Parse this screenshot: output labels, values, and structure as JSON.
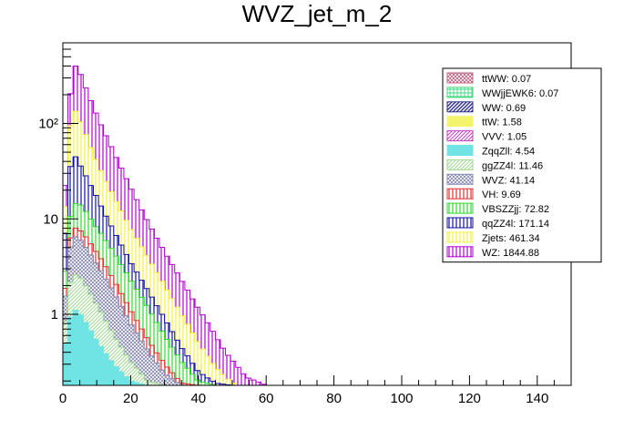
{
  "chart_data": {
    "type": "bar",
    "title": "WVZ_jet_m_2",
    "xlabel": "",
    "ylabel": "",
    "xlim": [
      0,
      150
    ],
    "ylim": [
      0.18,
      700
    ],
    "y_scale": "log",
    "stacked": true,
    "bin_width": 1.5,
    "x_ticks": [
      0,
      20,
      40,
      60,
      80,
      100,
      120,
      140
    ],
    "y_tick_labels": [
      {
        "value": 1,
        "label": "1"
      },
      {
        "value": 10,
        "label": "10"
      },
      {
        "value": 100,
        "label": "10²"
      }
    ],
    "legend_position": "top-right",
    "series": [
      {
        "name": "ttWW: 0.07",
        "color": "#c06080",
        "hatch": "crosshatch",
        "total": 0.07
      },
      {
        "name": "WWjjEWK6: 0.07",
        "color": "#40d880",
        "hatch": "grid",
        "total": 0.07
      },
      {
        "name": "WW: 0.69",
        "color": "#303090",
        "hatch": "dense-diagonal",
        "total": 0.69
      },
      {
        "name": "ttW: 1.58",
        "color": "#f4f46c",
        "hatch": "solid",
        "total": 1.58
      },
      {
        "name": "VVV: 1.05",
        "color": "#c040c0",
        "hatch": "diagonal",
        "total": 1.05
      },
      {
        "name": "ZqqZll: 4.54",
        "color": "#70e4e4",
        "hatch": "solid",
        "total": 4.54
      },
      {
        "name": "ggZZ4l: 11.46",
        "color": "#a0d890",
        "hatch": "diagonal",
        "total": 11.46
      },
      {
        "name": "WVZ: 41.14",
        "color": "#8888b0",
        "hatch": "crosshatch",
        "total": 41.14
      },
      {
        "name": "VH: 9.69",
        "color": "#e03030",
        "hatch": "vertical",
        "total": 9.69
      },
      {
        "name": "VBSZZjj: 72.82",
        "color": "#30d830",
        "hatch": "vertical",
        "total": 72.82
      },
      {
        "name": "qqZZ4l: 171.14",
        "color": "#1010a0",
        "hatch": "vertical",
        "total": 171.14
      },
      {
        "name": "Zjets: 461.34",
        "color": "#f0f040",
        "hatch": "vertical",
        "total": 461.34
      },
      {
        "name": "WZ: 1844.88",
        "color": "#b000d0",
        "hatch": "vertical",
        "total": 1844.88
      }
    ],
    "stack_envelope": {
      "x": [
        0,
        1.5,
        3,
        4.5,
        6,
        7.5,
        9,
        10.5,
        12,
        15,
        18,
        21,
        24,
        27,
        30,
        33,
        36,
        39,
        42,
        45,
        48,
        51,
        54,
        57,
        60
      ],
      "y": [
        5,
        100,
        420,
        380,
        280,
        200,
        150,
        110,
        85,
        50,
        30,
        18,
        11,
        7,
        4.5,
        3,
        2,
        1.3,
        0.9,
        0.6,
        0.4,
        0.3,
        0.22,
        0.2,
        0.18
      ]
    },
    "stack_layers_top": {
      "x": [
        0,
        1.5,
        3,
        4.5,
        6,
        7.5,
        9,
        12,
        15,
        20,
        25,
        30,
        35,
        40,
        45,
        50
      ],
      "Zjets_top": [
        3,
        60,
        150,
        120,
        90,
        65,
        48,
        28,
        17,
        8,
        4,
        2,
        1,
        0.5,
        0.28,
        0.19
      ],
      "qqZZ4l_top": [
        2,
        25,
        50,
        40,
        32,
        25,
        20,
        12,
        7.5,
        3.5,
        1.8,
        0.9,
        0.45,
        0.25,
        0.19,
        0.18
      ],
      "VBSZZjj_top": [
        1,
        8,
        14,
        15,
        13,
        11,
        9,
        6.5,
        4.5,
        2.3,
        1.2,
        0.6,
        0.32,
        0.2,
        0.18,
        0.18
      ],
      "VH_top": [
        0.7,
        5,
        8,
        8,
        7,
        6,
        5,
        3.5,
        2.3,
        1.1,
        0.55,
        0.3,
        0.19,
        0.18,
        0.18,
        0.18
      ],
      "WVZ_top": [
        0.6,
        4,
        6.5,
        6.5,
        5.5,
        4.6,
        3.8,
        2.6,
        1.7,
        0.8,
        0.42,
        0.24,
        0.18,
        0.18,
        0.18,
        0.18
      ],
      "ggZZ4l_top": [
        0.4,
        1.8,
        2.6,
        2.6,
        2.2,
        1.8,
        1.45,
        0.95,
        0.6,
        0.32,
        0.2,
        0.18,
        0.18,
        0.18,
        0.18,
        0.18
      ],
      "ZqqZll_top": [
        0.3,
        0.8,
        1.1,
        1.1,
        0.9,
        0.75,
        0.6,
        0.42,
        0.3,
        0.2,
        0.18,
        0.18,
        0.18,
        0.18,
        0.18,
        0.18
      ]
    }
  }
}
